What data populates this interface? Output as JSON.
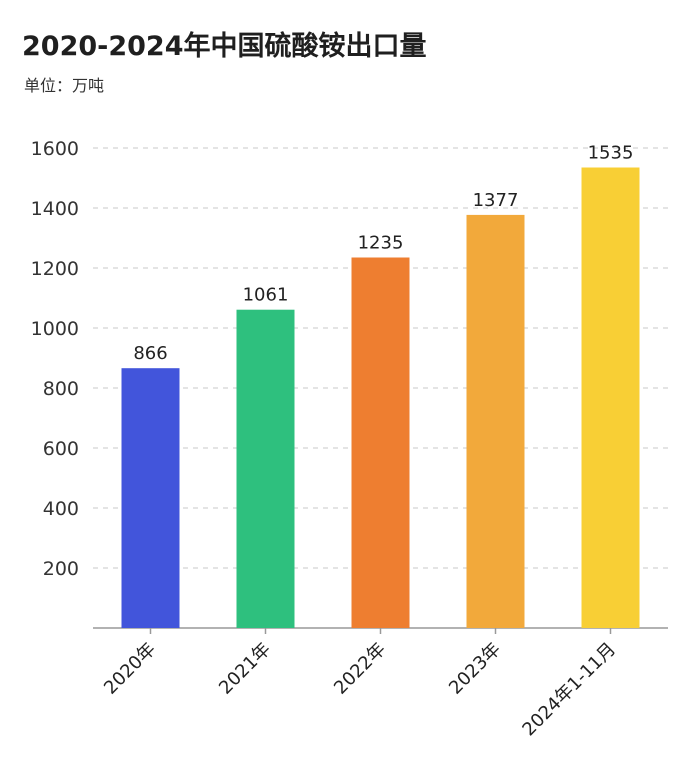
{
  "chart_data": {
    "type": "bar",
    "title": "2020-2024年中国硫酸铵出口量",
    "subtitle": "单位：万吨",
    "categories": [
      "2020年",
      "2021年",
      "2022年",
      "2023年",
      "2024年1-11月"
    ],
    "values": [
      866,
      1061,
      1235,
      1377,
      1535
    ],
    "ylim": [
      0,
      1600
    ],
    "yticks": [
      200,
      400,
      600,
      800,
      1000,
      1200,
      1400,
      1600
    ],
    "grid": true,
    "colors": [
      "#4255DB",
      "#2EC07E",
      "#EE7E30",
      "#F2A93B",
      "#F8CF35"
    ],
    "grid_color": "#c8c8c8",
    "axis_color": "#999999"
  }
}
